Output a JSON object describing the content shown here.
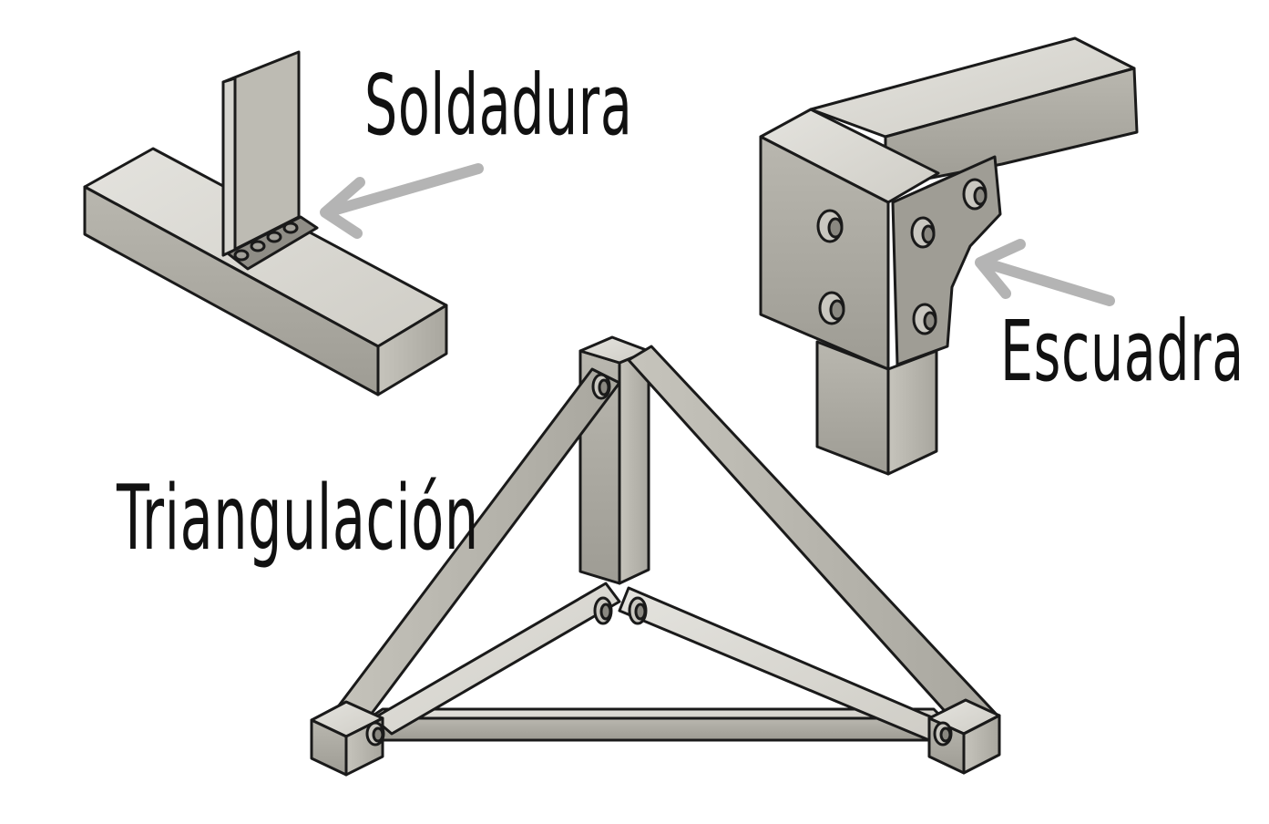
{
  "diagram": {
    "labels": {
      "soldadura": "Soldadura",
      "escuadra": "Escuadra",
      "triangulacion": "Triangulación"
    },
    "colors": {
      "background": "#ffffff",
      "metal_top": "#d9d8d2",
      "metal_side": "#b8b6ae",
      "metal_front": "#a9a79f",
      "outline": "#1a1a1a",
      "arrow": "#b4b4b4"
    },
    "icons": [
      "bolt-icon",
      "weld-bead-icon",
      "arrow-icon"
    ]
  }
}
